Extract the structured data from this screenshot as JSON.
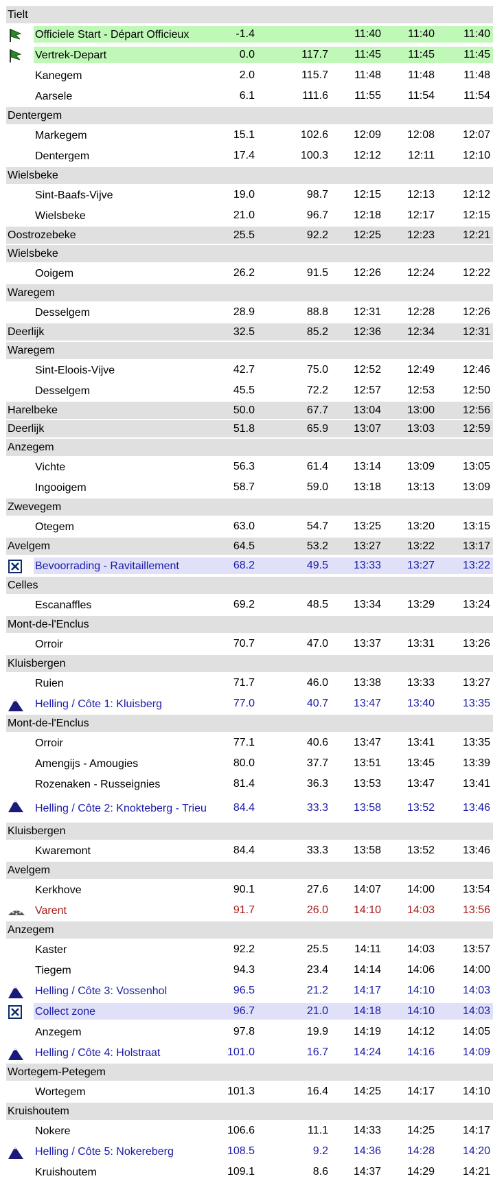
{
  "rows": [
    {
      "kind": "group",
      "name": "Tielt"
    },
    {
      "kind": "start",
      "name": "Officiele Start - Départ Officieux",
      "km": "-1.4",
      "times": [
        "11:40",
        "11:40",
        "11:40"
      ]
    },
    {
      "kind": "start",
      "name": "Vertrek-Depart",
      "km": "0.0",
      "rem": "117.7",
      "times": [
        "11:45",
        "11:45",
        "11:45"
      ]
    },
    {
      "kind": "place",
      "name": "Kanegem",
      "km": "2.0",
      "rem": "115.7",
      "times": [
        "11:48",
        "11:48",
        "11:48"
      ]
    },
    {
      "kind": "place",
      "name": "Aarsele",
      "km": "6.1",
      "rem": "111.6",
      "times": [
        "11:55",
        "11:54",
        "11:54"
      ]
    },
    {
      "kind": "group",
      "name": "Dentergem"
    },
    {
      "kind": "place",
      "name": "Markegem",
      "km": "15.1",
      "rem": "102.6",
      "times": [
        "12:09",
        "12:08",
        "12:07"
      ]
    },
    {
      "kind": "place",
      "name": "Dentergem",
      "km": "17.4",
      "rem": "100.3",
      "times": [
        "12:12",
        "12:11",
        "12:10"
      ]
    },
    {
      "kind": "group",
      "name": "Wielsbeke"
    },
    {
      "kind": "place",
      "name": "Sint-Baafs-Vijve",
      "km": "19.0",
      "rem": "98.7",
      "times": [
        "12:15",
        "12:13",
        "12:12"
      ]
    },
    {
      "kind": "place",
      "name": "Wielsbeke",
      "km": "21.0",
      "rem": "96.7",
      "times": [
        "12:18",
        "12:17",
        "12:15"
      ]
    },
    {
      "kind": "group",
      "name": "Oostrozebeke",
      "km": "25.5",
      "rem": "92.2",
      "times": [
        "12:25",
        "12:23",
        "12:21"
      ]
    },
    {
      "kind": "group",
      "name": "Wielsbeke"
    },
    {
      "kind": "place",
      "name": "Ooigem",
      "km": "26.2",
      "rem": "91.5",
      "times": [
        "12:26",
        "12:24",
        "12:22"
      ]
    },
    {
      "kind": "group",
      "name": "Waregem"
    },
    {
      "kind": "place",
      "name": "Desselgem",
      "km": "28.9",
      "rem": "88.8",
      "times": [
        "12:31",
        "12:28",
        "12:26"
      ]
    },
    {
      "kind": "group",
      "name": "Deerlijk",
      "km": "32.5",
      "rem": "85.2",
      "times": [
        "12:36",
        "12:34",
        "12:31"
      ]
    },
    {
      "kind": "group",
      "name": "Waregem"
    },
    {
      "kind": "place",
      "name": "Sint-Eloois-Vijve",
      "km": "42.7",
      "rem": "75.0",
      "times": [
        "12:52",
        "12:49",
        "12:46"
      ]
    },
    {
      "kind": "place",
      "name": "Desselgem",
      "km": "45.5",
      "rem": "72.2",
      "times": [
        "12:57",
        "12:53",
        "12:50"
      ]
    },
    {
      "kind": "group",
      "name": "Harelbeke",
      "km": "50.0",
      "rem": "67.7",
      "times": [
        "13:04",
        "13:00",
        "12:56"
      ]
    },
    {
      "kind": "group",
      "name": "Deerlijk",
      "km": "51.8",
      "rem": "65.9",
      "times": [
        "13:07",
        "13:03",
        "12:59"
      ]
    },
    {
      "kind": "group",
      "name": "Anzegem"
    },
    {
      "kind": "place",
      "name": "Vichte",
      "km": "56.3",
      "rem": "61.4",
      "times": [
        "13:14",
        "13:09",
        "13:05"
      ]
    },
    {
      "kind": "place",
      "name": "Ingooigem",
      "km": "58.7",
      "rem": "59.0",
      "times": [
        "13:18",
        "13:13",
        "13:09"
      ]
    },
    {
      "kind": "group",
      "name": "Zwevegem"
    },
    {
      "kind": "place",
      "name": "Otegem",
      "km": "63.0",
      "rem": "54.7",
      "times": [
        "13:25",
        "13:20",
        "13:15"
      ]
    },
    {
      "kind": "group",
      "name": "Avelgem",
      "km": "64.5",
      "rem": "53.2",
      "times": [
        "13:27",
        "13:22",
        "13:17"
      ]
    },
    {
      "kind": "feed",
      "name": "Bevoorrading - Ravitaillement",
      "km": "68.2",
      "rem": "49.5",
      "times": [
        "13:33",
        "13:27",
        "13:22"
      ]
    },
    {
      "kind": "group",
      "name": "Celles"
    },
    {
      "kind": "place",
      "name": "Escanaffles",
      "km": "69.2",
      "rem": "48.5",
      "times": [
        "13:34",
        "13:29",
        "13:24"
      ]
    },
    {
      "kind": "group",
      "name": "Mont-de-l'Enclus"
    },
    {
      "kind": "place",
      "name": "Orroir",
      "km": "70.7",
      "rem": "47.0",
      "times": [
        "13:37",
        "13:31",
        "13:26"
      ]
    },
    {
      "kind": "group",
      "name": "Kluisbergen"
    },
    {
      "kind": "place",
      "name": "Ruien",
      "km": "71.7",
      "rem": "46.0",
      "times": [
        "13:38",
        "13:33",
        "13:27"
      ]
    },
    {
      "kind": "climb",
      "name": "Helling / Côte 1: Kluisberg",
      "km": "77.0",
      "rem": "40.7",
      "times": [
        "13:47",
        "13:40",
        "13:35"
      ]
    },
    {
      "kind": "group",
      "name": "Mont-de-l'Enclus"
    },
    {
      "kind": "place",
      "name": "Orroir",
      "km": "77.1",
      "rem": "40.6",
      "times": [
        "13:47",
        "13:41",
        "13:35"
      ]
    },
    {
      "kind": "place",
      "name": "Amengijs - Amougies",
      "km": "80.0",
      "rem": "37.7",
      "times": [
        "13:51",
        "13:45",
        "13:39"
      ]
    },
    {
      "kind": "place",
      "name": "Rozenaken - Russeignies",
      "km": "81.4",
      "rem": "36.3",
      "times": [
        "13:53",
        "13:47",
        "13:41"
      ]
    },
    {
      "kind": "climb",
      "name": "Helling / Côte 2: Knokteberg - Trieu",
      "km": "84.4",
      "rem": "33.3",
      "times": [
        "13:58",
        "13:52",
        "13:46"
      ]
    },
    {
      "kind": "group",
      "name": "Kluisbergen"
    },
    {
      "kind": "place",
      "name": "Kwaremont",
      "km": "84.4",
      "rem": "33.3",
      "times": [
        "13:58",
        "13:52",
        "13:46"
      ]
    },
    {
      "kind": "group",
      "name": "Avelgem"
    },
    {
      "kind": "place",
      "name": "Kerkhove",
      "km": "90.1",
      "rem": "27.6",
      "times": [
        "14:07",
        "14:00",
        "13:54"
      ]
    },
    {
      "kind": "cobble",
      "name": "Varent",
      "km": "91.7",
      "rem": "26.0",
      "times": [
        "14:10",
        "14:03",
        "13:56"
      ]
    },
    {
      "kind": "group",
      "name": "Anzegem"
    },
    {
      "kind": "place",
      "name": "Kaster",
      "km": "92.2",
      "rem": "25.5",
      "times": [
        "14:11",
        "14:03",
        "13:57"
      ]
    },
    {
      "kind": "place",
      "name": "Tiegem",
      "km": "94.3",
      "rem": "23.4",
      "times": [
        "14:14",
        "14:06",
        "14:00"
      ]
    },
    {
      "kind": "climb",
      "name": "Helling / Côte 3: Vossenhol",
      "km": "96.5",
      "rem": "21.2",
      "times": [
        "14:17",
        "14:10",
        "14:03"
      ]
    },
    {
      "kind": "feed",
      "name": "Collect zone",
      "km": "96.7",
      "rem": "21.0",
      "times": [
        "14:18",
        "14:10",
        "14:03"
      ]
    },
    {
      "kind": "place",
      "name": "Anzegem",
      "km": "97.8",
      "rem": "19.9",
      "times": [
        "14:19",
        "14:12",
        "14:05"
      ]
    },
    {
      "kind": "climb",
      "name": "Helling / Côte 4: Holstraat",
      "km": "101.0",
      "rem": "16.7",
      "times": [
        "14:24",
        "14:16",
        "14:09"
      ]
    },
    {
      "kind": "group",
      "name": "Wortegem-Petegem"
    },
    {
      "kind": "place",
      "name": "Wortegem",
      "km": "101.3",
      "rem": "16.4",
      "times": [
        "14:25",
        "14:17",
        "14:10"
      ]
    },
    {
      "kind": "group",
      "name": "Kruishoutem"
    },
    {
      "kind": "place",
      "name": "Nokere",
      "km": "106.6",
      "rem": "11.1",
      "times": [
        "14:33",
        "14:25",
        "14:17"
      ]
    },
    {
      "kind": "climb",
      "name": "Helling / Côte 5: Nokereberg",
      "km": "108.5",
      "rem": "9.2",
      "times": [
        "14:36",
        "14:28",
        "14:20"
      ]
    },
    {
      "kind": "place",
      "name": "Kruishoutem",
      "km": "109.1",
      "rem": "8.6",
      "times": [
        "14:37",
        "14:29",
        "14:21"
      ]
    }
  ]
}
